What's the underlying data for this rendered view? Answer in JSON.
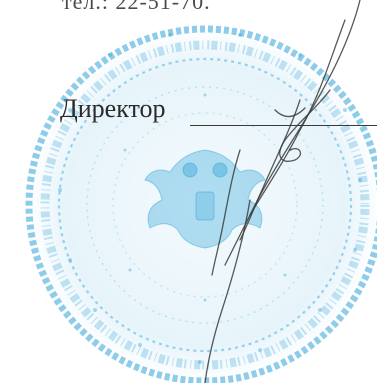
{
  "document": {
    "top_text": "тел.: 22-51-70.",
    "role_label": "Директор"
  },
  "stamp": {
    "color": "#2fa3d8"
  },
  "signature": {
    "color": "#3b3b3b"
  }
}
